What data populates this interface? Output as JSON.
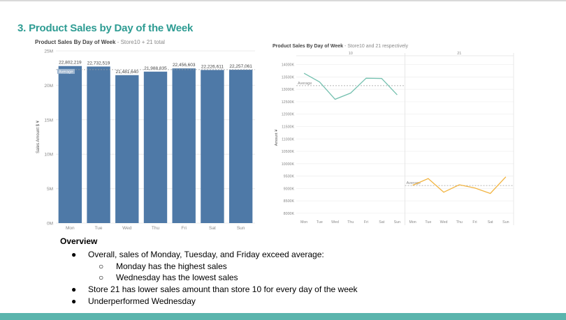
{
  "slide": {
    "title": "3. Product Sales by Day of the Week"
  },
  "left_chart": {
    "title_main": "Product Sales By Day of Week",
    "title_sub": " - Store10 + 21 total",
    "reference_label": "Average",
    "chart_data": {
      "type": "bar",
      "title": "Product Sales By Day of Week - Store10 + 21 total",
      "ylabel": "Sales Amount $ ¥",
      "categories": [
        "Mon",
        "Tue",
        "Wed",
        "Thu",
        "Fri",
        "Sat",
        "Sun"
      ],
      "values": [
        22802219,
        22732519,
        21481640,
        21988835,
        22456603,
        22226611,
        22257061
      ],
      "value_labels": [
        "22,802,219",
        "22,732,519",
        "21,481,640",
        "21,988,835",
        "22,456,603",
        "22,226,611",
        "22,257,061"
      ],
      "ylim": [
        0,
        25000000
      ],
      "yticks": [
        0,
        5000000,
        10000000,
        15000000,
        20000000,
        25000000
      ],
      "ytick_labels": [
        "0M",
        "5M",
        "10M",
        "15M",
        "20M",
        "25M"
      ],
      "average": 22277927,
      "bar_color": "#4e79a7"
    }
  },
  "right_chart": {
    "title_main": "Product Sales By Day of Week",
    "title_sub": " - Store10 and 21 respectively",
    "chart_data": {
      "type": "line",
      "title": "Product Sales By Day of Week - Store10 and 21 respectively",
      "ylabel": "Amount ¥",
      "panels": [
        "10",
        "21"
      ],
      "categories": [
        "Mon",
        "Tue",
        "Wed",
        "Thu",
        "Fri",
        "Sat",
        "Sun"
      ],
      "ylim": [
        7800000,
        14300000
      ],
      "yticks": [
        8000000,
        8500000,
        9000000,
        9500000,
        10000000,
        10500000,
        11000000,
        11500000,
        12000000,
        12500000,
        13000000,
        13500000,
        14000000
      ],
      "ytick_labels": [
        "8000K",
        "8500K",
        "9000K",
        "9500K",
        "10000K",
        "10500K",
        "11000K",
        "11500K",
        "12000K",
        "12500K",
        "13000K",
        "13500K",
        "14000K"
      ],
      "series": [
        {
          "name": "10",
          "values": [
            13650000,
            13300000,
            12600000,
            12850000,
            13450000,
            13440000,
            12780000
          ],
          "average": 13150000,
          "average_label": "Average",
          "color": "#76c1b0"
        },
        {
          "name": "21",
          "values": [
            9130000,
            9400000,
            8850000,
            9150000,
            9020000,
            8800000,
            9470000
          ],
          "average": 9120000,
          "average_label": "Average",
          "color": "#f2b441"
        }
      ]
    }
  },
  "overview": {
    "heading": "Overview",
    "items": [
      {
        "bullet": "●",
        "text": "Overall, sales of Monday, Tuesday, and Friday exceed average:"
      },
      {
        "bullet": "○",
        "text": "Monday has the highest sales"
      },
      {
        "bullet": "○",
        "text": "Wednesday has the lowest sales"
      },
      {
        "bullet": "●",
        "text": "Store 21 has lower sales amount than store 10 for every day of the week"
      },
      {
        "bullet": "●",
        "text": "Underperformed Wednesday"
      }
    ]
  }
}
